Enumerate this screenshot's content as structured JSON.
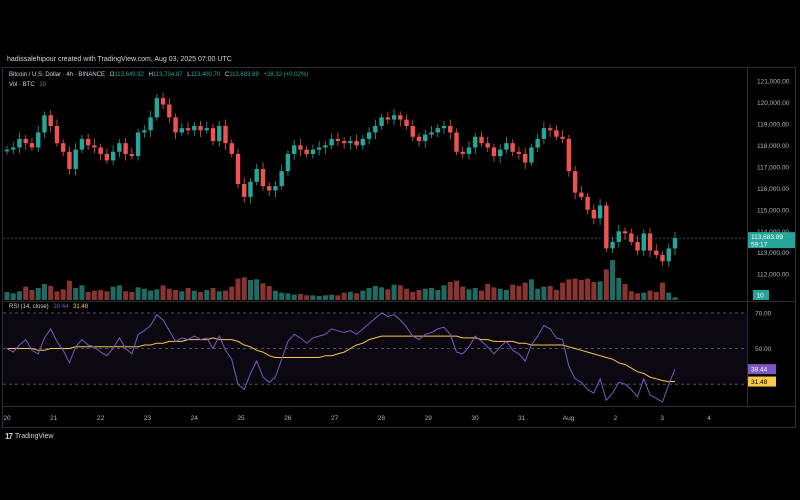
{
  "credit": "hadissalehipour created with TradingView.com, Aug 03, 2025 07:00 UTC",
  "brand": "TradingView",
  "legend": {
    "symbol": "Bitcoin / U.S. Dollar · 4h · BINANCE",
    "o_label": "O",
    "o": "113,649.92",
    "h_label": "H",
    "h": "113,734.87",
    "l_label": "L",
    "l": "113,400.70",
    "c_label": "C",
    "c": "113,683.89",
    "change": "+28.32 (+0.02%)",
    "vol_label": "Vol · BTC",
    "vol": "10"
  },
  "rsi_legend": {
    "label": "RSI (14, close)",
    "rsi": "38.44",
    "ma": "31.48"
  },
  "colors": {
    "up": "#26a69a",
    "down": "#ef5350",
    "rsi": "#7e57c2",
    "rsi_ma": "#f7c948",
    "bg": "#000000"
  },
  "chart_data": [
    {
      "type": "candlestick",
      "series_name": "Bitcoin / U.S. Dollar",
      "interval": "4h",
      "x_tick_labels": [
        "20",
        "21",
        "22",
        "23",
        "24",
        "25",
        "26",
        "27",
        "28",
        "29",
        "30",
        "31",
        "Aug",
        "2",
        "3",
        "4"
      ],
      "y_tick_labels": [
        "121,000.00",
        "120,000.00",
        "119,000.00",
        "118,000.00",
        "117,000.00",
        "116,000.00",
        "115,000.00",
        "114,000.00",
        "113,000.00",
        "112,000.00"
      ],
      "y_ticks": [
        121000,
        120000,
        119000,
        118000,
        117000,
        116000,
        115000,
        114000,
        113000,
        112000
      ],
      "ylim": [
        110800,
        121600
      ],
      "last_price_label": "113,683.89",
      "countdown": "59:17",
      "volume_label": "10",
      "close": [
        117800,
        117900,
        118300,
        118100,
        117900,
        118600,
        119400,
        118900,
        118100,
        117700,
        116900,
        117800,
        118300,
        118000,
        117900,
        117600,
        117300,
        117700,
        118100,
        117600,
        117500,
        118600,
        118700,
        119300,
        120200,
        119900,
        119300,
        118600,
        118800,
        118700,
        118900,
        118700,
        118800,
        118200,
        118900,
        118100,
        117600,
        116200,
        115600,
        116300,
        116900,
        116100,
        115900,
        116100,
        116800,
        117600,
        118000,
        117800,
        117600,
        117800,
        117900,
        118000,
        118300,
        118200,
        118100,
        118200,
        118000,
        118300,
        118600,
        118900,
        119300,
        119200,
        119400,
        119200,
        118900,
        118400,
        118200,
        118500,
        118600,
        118800,
        118900,
        118600,
        117700,
        117600,
        117900,
        118400,
        118100,
        117900,
        117500,
        117800,
        118100,
        117700,
        117600,
        117200,
        117900,
        118300,
        118800,
        118700,
        118400,
        118300,
        116800,
        115800,
        115600,
        115000,
        114600,
        115200,
        113200,
        113500,
        114000,
        113900,
        113500,
        113100,
        113900,
        113100,
        112900,
        112600,
        113200,
        113680
      ],
      "volume": [
        1.2,
        1.0,
        1.3,
        2.0,
        1.5,
        1.8,
        2.4,
        2.1,
        1.3,
        1.6,
        2.9,
        1.8,
        2.2,
        1.2,
        1.4,
        1.5,
        1.3,
        2.0,
        2.2,
        1.3,
        1.2,
        1.9,
        1.7,
        1.4,
        1.6,
        2.2,
        1.7,
        1.5,
        1.3,
        1.8,
        1.4,
        1.2,
        1.5,
        1.8,
        1.3,
        1.4,
        2.0,
        3.2,
        3.4,
        3.0,
        3.1,
        2.5,
        2.1,
        1.4,
        1.1,
        1.0,
        0.8,
        0.9,
        0.7,
        0.7,
        0.6,
        0.7,
        0.8,
        0.7,
        1.1,
        1.2,
        1.0,
        1.4,
        1.8,
        2.1,
        1.9,
        1.6,
        2.3,
        2.2,
        1.7,
        1.2,
        1.5,
        1.7,
        1.8,
        1.5,
        2.2,
        2.7,
        2.9,
        2.0,
        1.6,
        1.8,
        1.4,
        2.4,
        1.9,
        1.7,
        1.5,
        2.3,
        2.1,
        2.6,
        3.1,
        1.7,
        2.0,
        2.1,
        1.5,
        2.6,
        3.1,
        3.2,
        3.0,
        3.2,
        2.7,
        2.8,
        4.6,
        6.0,
        3.3,
        2.4,
        1.3,
        1.0,
        1.1,
        1.4,
        1.2,
        2.6,
        1.1,
        0.4
      ]
    },
    {
      "type": "line",
      "series_name": "RSI (14, close)",
      "ylim": [
        20,
        75
      ],
      "y_ticks": [
        70,
        50,
        30
      ],
      "y_tick_labels": [
        "70.00",
        "50.00",
        "30.00"
      ],
      "rsi": [
        50,
        48,
        52,
        55,
        49,
        47,
        56,
        61,
        54,
        49,
        42,
        51,
        55,
        52,
        51,
        48,
        46,
        50,
        56,
        50,
        47,
        58,
        60,
        63,
        69,
        66,
        60,
        54,
        56,
        55,
        57,
        55,
        56,
        50,
        57,
        49,
        44,
        30,
        27,
        36,
        43,
        34,
        31,
        34,
        44,
        54,
        58,
        56,
        53,
        56,
        57,
        58,
        61,
        60,
        59,
        60,
        58,
        61,
        64,
        67,
        70,
        68,
        69,
        66,
        62,
        57,
        55,
        58,
        59,
        61,
        62,
        58,
        48,
        47,
        51,
        57,
        54,
        51,
        47,
        51,
        54,
        49,
        47,
        43,
        52,
        57,
        63,
        61,
        56,
        55,
        40,
        33,
        31,
        27,
        25,
        33,
        21,
        25,
        31,
        30,
        27,
        23,
        33,
        24,
        22,
        20,
        30,
        38.44
      ],
      "rsi_ma": [
        50,
        50,
        50,
        50,
        50,
        49,
        49,
        50,
        50,
        50,
        50,
        51,
        51,
        51,
        51,
        51,
        51,
        51,
        51,
        51,
        51,
        51,
        52,
        52,
        53,
        53,
        54,
        54,
        54,
        55,
        55,
        55,
        55,
        56,
        55,
        55,
        55,
        54,
        52,
        51,
        49,
        48,
        46,
        45,
        45,
        45,
        45,
        45,
        45,
        45,
        45,
        46,
        46,
        47,
        48,
        50,
        52,
        53,
        55,
        56,
        57,
        57,
        57,
        57,
        57,
        57,
        57,
        57,
        57,
        57,
        57,
        57,
        57,
        56,
        56,
        56,
        55,
        55,
        54,
        54,
        54,
        54,
        53,
        53,
        52,
        52,
        52,
        52,
        52,
        52,
        51,
        50,
        49,
        48,
        47,
        46,
        45,
        44,
        42,
        41,
        39,
        37,
        36,
        34,
        33,
        32,
        31.5,
        31.48
      ]
    }
  ]
}
